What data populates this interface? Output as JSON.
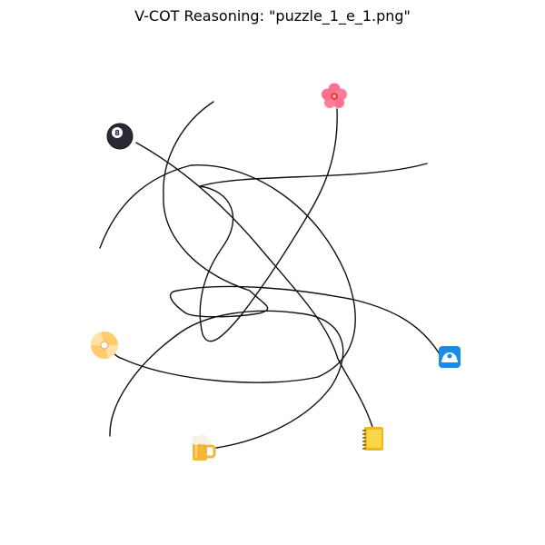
{
  "title": "V-COT Reasoning: \"puzzle_1_e_1.png\"",
  "icons": [
    {
      "name": "pool-8-ball-icon"
    },
    {
      "name": "hibiscus-flower-icon"
    },
    {
      "name": "optical-disc-icon"
    },
    {
      "name": "helmet-app-icon"
    },
    {
      "name": "beer-mug-icon"
    },
    {
      "name": "yellow-notebook-icon"
    }
  ],
  "colors": {
    "line": "#111111",
    "background": "#ffffff"
  }
}
